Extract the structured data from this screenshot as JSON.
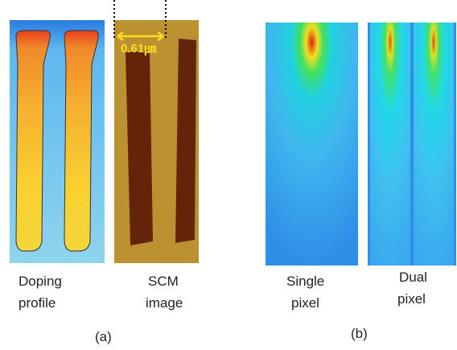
{
  "panels": [
    {
      "caption": [
        "Doping",
        "profile"
      ]
    },
    {
      "caption": [
        "SCM",
        "image"
      ],
      "scale_label": "0.61㎛"
    },
    {
      "caption": [
        "Single",
        "pixel"
      ]
    },
    {
      "caption": [
        "Dual",
        "pixel"
      ]
    }
  ],
  "groups": [
    "(a)",
    "(b)"
  ]
}
